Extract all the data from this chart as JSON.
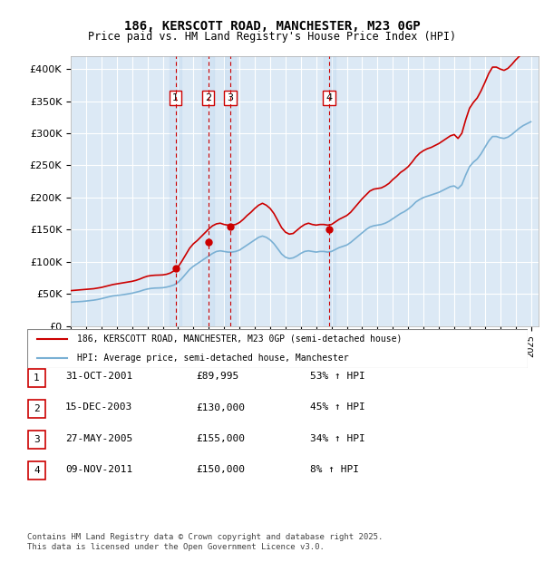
{
  "title": "186, KERSCOTT ROAD, MANCHESTER, M23 0GP",
  "subtitle": "Price paid vs. HM Land Registry's House Price Index (HPI)",
  "background_color": "#ffffff",
  "plot_bg_color": "#dce9f5",
  "grid_color": "#ffffff",
  "ylabel": "",
  "xlabel": "",
  "ylim": [
    0,
    420000
  ],
  "yticks": [
    0,
    50000,
    100000,
    150000,
    200000,
    250000,
    300000,
    350000,
    400000
  ],
  "ytick_labels": [
    "£0",
    "£50K",
    "£100K",
    "£150K",
    "£200K",
    "£250K",
    "£300K",
    "£350K",
    "£400K"
  ],
  "legend1_label": "186, KERSCOTT ROAD, MANCHESTER, M23 0GP (semi-detached house)",
  "legend2_label": "HPI: Average price, semi-detached house, Manchester",
  "legend1_color": "#cc0000",
  "legend2_color": "#7ab0d4",
  "sale_dates": [
    "2001-10-31",
    "2003-12-15",
    "2005-05-27",
    "2011-11-09"
  ],
  "sale_prices": [
    89995,
    130000,
    155000,
    150000
  ],
  "sale_labels": [
    "1",
    "2",
    "3",
    "4"
  ],
  "table_rows": [
    {
      "num": "1",
      "date": "31-OCT-2001",
      "price": "£89,995",
      "hpi": "53% ↑ HPI"
    },
    {
      "num": "2",
      "date": "15-DEC-2003",
      "price": "£130,000",
      "hpi": "45% ↑ HPI"
    },
    {
      "num": "3",
      "date": "27-MAY-2005",
      "price": "£155,000",
      "hpi": "34% ↑ HPI"
    },
    {
      "num": "4",
      "date": "09-NOV-2011",
      "price": "£150,000",
      "hpi": "8% ↑ HPI"
    }
  ],
  "footer": "Contains HM Land Registry data © Crown copyright and database right 2025.\nThis data is licensed under the Open Government Licence v3.0.",
  "hpi_data": {
    "dates": [
      1995.0,
      1995.25,
      1995.5,
      1995.75,
      1996.0,
      1996.25,
      1996.5,
      1996.75,
      1997.0,
      1997.25,
      1997.5,
      1997.75,
      1998.0,
      1998.25,
      1998.5,
      1998.75,
      1999.0,
      1999.25,
      1999.5,
      1999.75,
      2000.0,
      2000.25,
      2000.5,
      2000.75,
      2001.0,
      2001.25,
      2001.5,
      2001.75,
      2002.0,
      2002.25,
      2002.5,
      2002.75,
      2003.0,
      2003.25,
      2003.5,
      2003.75,
      2004.0,
      2004.25,
      2004.5,
      2004.75,
      2005.0,
      2005.25,
      2005.5,
      2005.75,
      2006.0,
      2006.25,
      2006.5,
      2006.75,
      2007.0,
      2007.25,
      2007.5,
      2007.75,
      2008.0,
      2008.25,
      2008.5,
      2008.75,
      2009.0,
      2009.25,
      2009.5,
      2009.75,
      2010.0,
      2010.25,
      2010.5,
      2010.75,
      2011.0,
      2011.25,
      2011.5,
      2011.75,
      2012.0,
      2012.25,
      2012.5,
      2012.75,
      2013.0,
      2013.25,
      2013.5,
      2013.75,
      2014.0,
      2014.25,
      2014.5,
      2014.75,
      2015.0,
      2015.25,
      2015.5,
      2015.75,
      2016.0,
      2016.25,
      2016.5,
      2016.75,
      2017.0,
      2017.25,
      2017.5,
      2017.75,
      2018.0,
      2018.25,
      2018.5,
      2018.75,
      2019.0,
      2019.25,
      2019.5,
      2019.75,
      2020.0,
      2020.25,
      2020.5,
      2020.75,
      2021.0,
      2021.25,
      2021.5,
      2021.75,
      2022.0,
      2022.25,
      2022.5,
      2022.75,
      2023.0,
      2023.25,
      2023.5,
      2023.75,
      2024.0,
      2024.25,
      2024.5,
      2024.75,
      2025.0
    ],
    "values": [
      37000,
      37500,
      37800,
      38200,
      38800,
      39500,
      40200,
      41200,
      42500,
      44000,
      45500,
      46800,
      47500,
      48200,
      49000,
      50000,
      51000,
      52500,
      54000,
      56000,
      57500,
      58500,
      59000,
      59200,
      59500,
      60500,
      62000,
      64000,
      68000,
      74000,
      81000,
      88000,
      93000,
      97000,
      101000,
      105000,
      109000,
      113000,
      116000,
      117000,
      116000,
      115000,
      115000,
      116000,
      118000,
      122000,
      126000,
      130000,
      134000,
      138000,
      140000,
      138000,
      134000,
      128000,
      120000,
      112000,
      107000,
      105000,
      106000,
      109000,
      113000,
      116000,
      117000,
      116000,
      115000,
      116000,
      116000,
      115000,
      116000,
      119000,
      122000,
      124000,
      126000,
      130000,
      135000,
      140000,
      145000,
      150000,
      154000,
      156000,
      157000,
      158000,
      160000,
      163000,
      167000,
      171000,
      175000,
      178000,
      182000,
      187000,
      193000,
      197000,
      200000,
      202000,
      204000,
      206000,
      208000,
      211000,
      214000,
      217000,
      218000,
      214000,
      220000,
      235000,
      248000,
      255000,
      260000,
      268000,
      278000,
      288000,
      295000,
      295000,
      293000,
      292000,
      294000,
      298000,
      303000,
      308000,
      312000,
      315000,
      318000
    ],
    "property_values": [
      55000,
      55500,
      56000,
      56500,
      57000,
      57500,
      58000,
      59000,
      60000,
      61500,
      63000,
      64500,
      65500,
      66500,
      67500,
      68500,
      69500,
      71000,
      73000,
      75500,
      77500,
      78500,
      79000,
      79200,
      79500,
      80500,
      82500,
      86000,
      92000,
      101000,
      111000,
      121000,
      128000,
      133000,
      139000,
      145000,
      151000,
      156000,
      159000,
      160000,
      158000,
      157000,
      157000,
      158000,
      161000,
      166000,
      172000,
      177000,
      183000,
      188000,
      191000,
      188000,
      183000,
      175000,
      164000,
      153000,
      146000,
      143000,
      144000,
      149000,
      154000,
      158000,
      160000,
      158000,
      157000,
      158000,
      158000,
      157000,
      158000,
      162000,
      166000,
      169000,
      172000,
      177000,
      184000,
      191000,
      198000,
      204000,
      210000,
      213000,
      214000,
      215000,
      218000,
      222000,
      228000,
      233000,
      239000,
      243000,
      248000,
      255000,
      263000,
      269000,
      273000,
      276000,
      278000,
      281000,
      284000,
      288000,
      292000,
      296000,
      298000,
      292000,
      300000,
      321000,
      339000,
      348000,
      355000,
      366000,
      379000,
      393000,
      403000,
      403000,
      400000,
      398000,
      401000,
      407000,
      414000,
      420000,
      426000,
      430000,
      434000
    ]
  }
}
